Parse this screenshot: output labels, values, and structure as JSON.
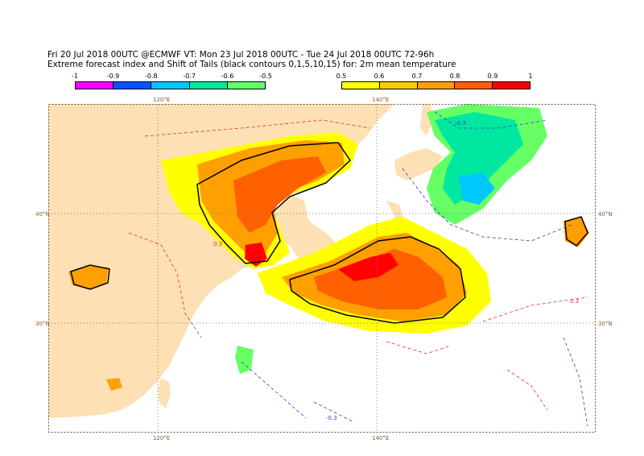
{
  "header": {
    "line1": "Fri 20 Jul 2018 00UTC @ECMWF VT: Mon 23 Jul 2018 00UTC - Tue 24 Jul 2018 00UTC  72-96h",
    "line2": "Extreme forecast index and Shift of Tails (black contours 0,1,5,10,15) for: 2m mean temperature"
  },
  "legend_negative": {
    "labels": [
      "-1",
      "-0.9",
      "-0.8",
      "-0.7",
      "-0.6",
      "-0.5"
    ],
    "colors": [
      "#ff00ff",
      "#0055ff",
      "#00c8ff",
      "#00e8a0",
      "#66ff66",
      "#aaff00"
    ]
  },
  "legend_positive": {
    "labels": [
      "0.5",
      "0.6",
      "0.7",
      "0.8",
      "0.9",
      "1"
    ],
    "colors": [
      "#ffff00",
      "#ffcc00",
      "#ffa000",
      "#ff6000",
      "#ff0000"
    ]
  },
  "map": {
    "land_color": "#fde0b3",
    "sea_color": "#ffffff",
    "grid_color": "#808080",
    "lat_labels": [
      "40°N",
      "30°N"
    ],
    "lon_labels": [
      "120°E",
      "140°E"
    ],
    "contour_label": "0.3",
    "negative_contour_label": "-0.3",
    "positive_contour_color": "#e03030",
    "negative_contour_color": "#3040c0"
  }
}
